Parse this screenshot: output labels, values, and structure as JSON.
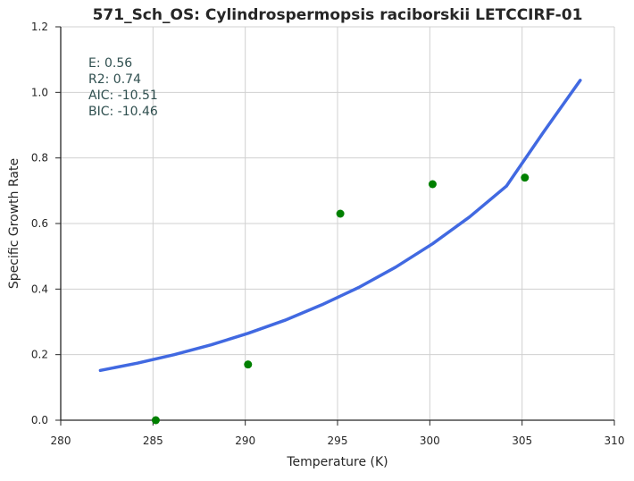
{
  "chart_data": {
    "type": "scatter",
    "title": "571_Sch_OS: Cylindrospermopsis raciborskii LETCCIRF-01",
    "xlabel": "Temperature (K)",
    "ylabel": "Specific Growth Rate",
    "xlim": [
      280,
      310
    ],
    "ylim": [
      0.0,
      1.2
    ],
    "xticks": [
      280,
      285,
      290,
      295,
      300,
      305,
      310
    ],
    "xtick_labels": [
      "280",
      "285",
      "290",
      "295",
      "300",
      "305",
      "310"
    ],
    "yticks": [
      0.0,
      0.2,
      0.4,
      0.6,
      0.8,
      1.0,
      1.2
    ],
    "ytick_labels": [
      "0.0",
      "0.2",
      "0.4",
      "0.6",
      "0.8",
      "1.0",
      "1.2"
    ],
    "grid": true,
    "points": {
      "color": "#008000",
      "x": [
        285.15,
        290.15,
        295.15,
        300.15,
        305.15
      ],
      "y": [
        0.0,
        0.17,
        0.63,
        0.72,
        0.74
      ]
    },
    "fit": {
      "color": "#4169e1",
      "x": [
        282.15,
        284.15,
        286.15,
        288.15,
        290.15,
        292.15,
        294.15,
        296.15,
        298.15,
        300.15,
        302.15,
        304.15,
        306.15,
        308.15
      ],
      "y": [
        0.152,
        0.174,
        0.2,
        0.23,
        0.265,
        0.305,
        0.352,
        0.405,
        0.467,
        0.538,
        0.62,
        0.714,
        0.878,
        1.037
      ]
    },
    "annotation": {
      "color": "#2f4f4f",
      "lines": [
        "E:  0.56",
        "R2:  0.74",
        "AIC: -10.51",
        "BIC: -10.46"
      ]
    }
  }
}
